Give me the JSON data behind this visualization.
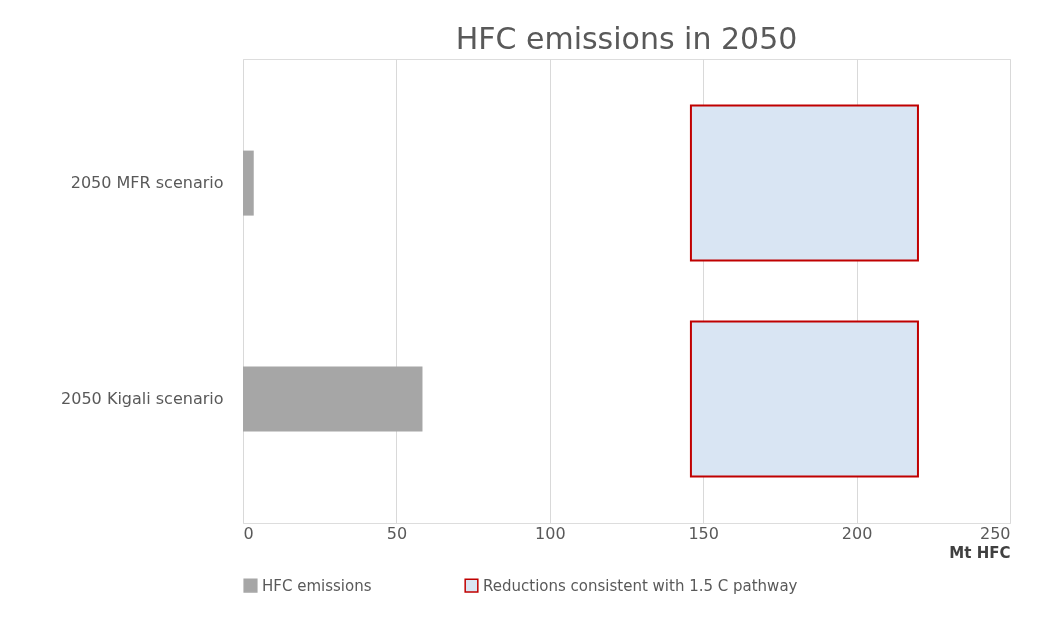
{
  "chart_data": {
    "type": "bar",
    "orientation": "horizontal",
    "title": "HFC emissions in 2050",
    "xlabel": "Mt HFC",
    "categories": [
      "2050 MFR scenario",
      "2050 Kigali scenario"
    ],
    "series": [
      {
        "name": "HFC emissions",
        "color": "#a6a6a6",
        "values": [
          3.5,
          58.5
        ]
      },
      {
        "name": "Reductions consistent with 1.5 C pathway",
        "color": "#d9e5f3",
        "base": [
          146,
          146
        ],
        "values": [
          74,
          74
        ]
      }
    ],
    "xlim": [
      0,
      250
    ],
    "xticks": [
      0,
      50,
      100,
      150,
      200,
      250
    ],
    "grid": "x",
    "legend": "bottom"
  }
}
